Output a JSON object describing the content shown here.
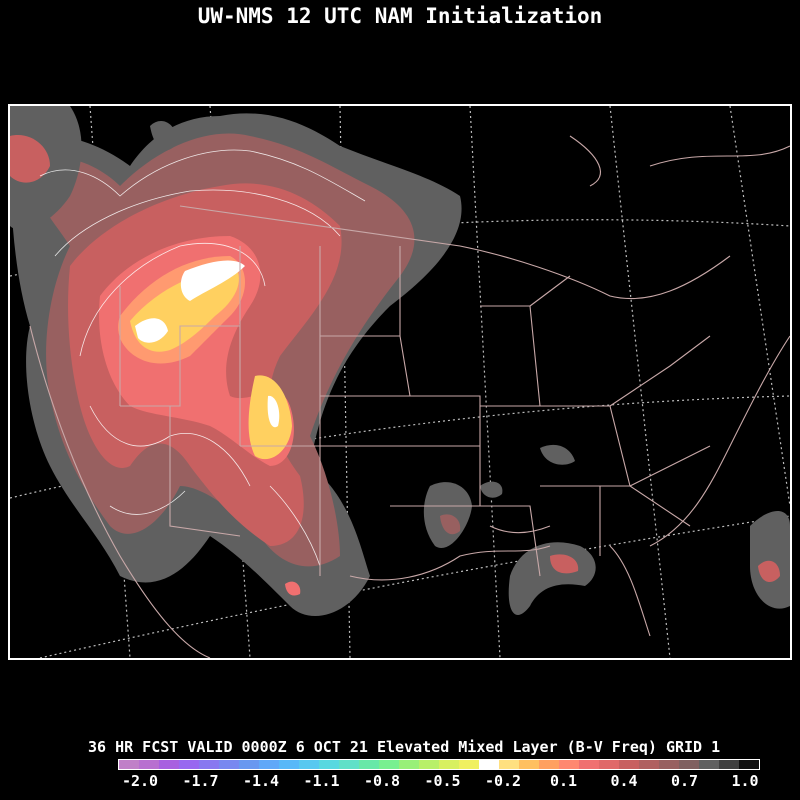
{
  "header": {
    "title": "UW-NMS 12 UTC NAM Initialization"
  },
  "footer": {
    "caption": "36 HR FCST VALID 0000Z  6 OCT 21 Elevated Mixed Layer (B-V Freq) GRID 1"
  },
  "colorbar": {
    "colors": [
      "#c080c8",
      "#b870d0",
      "#a860e0",
      "#9868f0",
      "#8878f0",
      "#7888f0",
      "#6898f0",
      "#60a8f8",
      "#58b8f8",
      "#58c8f0",
      "#58d8e0",
      "#60e0c8",
      "#68e8a8",
      "#78f090",
      "#98f078",
      "#b8f068",
      "#d8f060",
      "#f0f060",
      "#ffffff",
      "#ffe080",
      "#ffc060",
      "#ffa060",
      "#ff8870",
      "#f07070",
      "#e06868",
      "#c86060",
      "#b06060",
      "#986060",
      "#806060",
      "#606060",
      "#404040",
      "#101010"
    ],
    "ticks": [
      "-2.0",
      "-1.7",
      "-1.4",
      "-1.1",
      "-0.8",
      "-0.5",
      "-0.2",
      "0.1",
      "0.4",
      "0.7",
      "1.0"
    ]
  },
  "map": {
    "boundary_color": "#c8a8a8",
    "grid_color": "#c0c0c0",
    "fill_colors": {
      "outer": "#606060",
      "low": "#986060",
      "mid": "#c86060",
      "high": "#f07070",
      "peak": "#ff9070",
      "max": "#ffd060",
      "top": "#ffffff"
    }
  }
}
